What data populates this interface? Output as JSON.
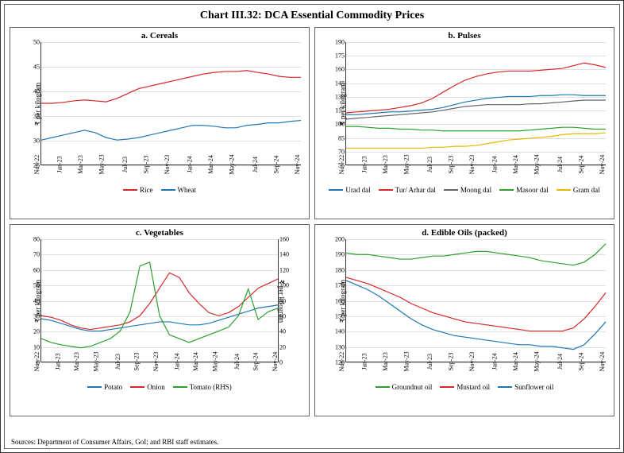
{
  "title": "Chart III.32: DCA Essential Commodity Prices",
  "sources": "Sources: Department of Consumer Affairs, GoI; and RBI staff estimates.",
  "ylabel": "₹ per kilogram",
  "xcategories": [
    "Nov-22",
    "Jan-23",
    "Mar-23",
    "May-23",
    "Jul-23",
    "Sep-23",
    "Nov-23",
    "Jan-24",
    "Mar-24",
    "May-24",
    "Jul-24",
    "Sep-24",
    "Nov-24"
  ],
  "colors": {
    "red": "#d62728",
    "blue": "#1f77b4",
    "green": "#2ca02c",
    "yellow": "#e6b800",
    "gray": "#666666",
    "grid": "#e0e0e0"
  },
  "panels": {
    "a": {
      "title": "a. Cereals",
      "ylim": [
        25,
        50
      ],
      "ytick_step": 5,
      "series": [
        {
          "name": "Rice",
          "color": "#d62728",
          "values": [
            37.5,
            37.5,
            37.7,
            38,
            38.2,
            38,
            37.8,
            38.5,
            39.5,
            40.5,
            41,
            41.5,
            42,
            42.5,
            43,
            43.5,
            43.8,
            44,
            44,
            44.2,
            43.8,
            43.5,
            43,
            42.8,
            42.8
          ]
        },
        {
          "name": "Wheat",
          "color": "#1f77b4",
          "values": [
            30,
            30.5,
            31,
            31.5,
            32,
            31.5,
            30.5,
            30,
            30.2,
            30.5,
            31,
            31.5,
            32,
            32.5,
            33,
            33,
            32.8,
            32.5,
            32.5,
            33,
            33.2,
            33.5,
            33.5,
            33.8,
            34
          ]
        }
      ]
    },
    "b": {
      "title": "b. Pulses",
      "ylim": [
        55,
        190
      ],
      "ytick_step": 15,
      "series": [
        {
          "name": "Urad dal",
          "color": "#1f77b4",
          "values": [
            110,
            110,
            111,
            112,
            113,
            113,
            114,
            115,
            116,
            118,
            121,
            124,
            126,
            128,
            129,
            130,
            130,
            130,
            131,
            131,
            132,
            132,
            131,
            131,
            131
          ]
        },
        {
          "name": "Tur/ Arhar dal",
          "color": "#d62728",
          "values": [
            112,
            113,
            114,
            115,
            116,
            118,
            120,
            123,
            128,
            135,
            142,
            148,
            152,
            155,
            157,
            158,
            158,
            158,
            159,
            160,
            161,
            164,
            167,
            165,
            162
          ]
        },
        {
          "name": "Moong dal",
          "color": "#666666",
          "values": [
            105,
            106,
            107,
            108,
            109,
            110,
            111,
            112,
            113,
            115,
            117,
            119,
            120,
            121,
            121,
            121,
            121,
            122,
            122,
            123,
            124,
            125,
            126,
            126,
            126
          ]
        },
        {
          "name": "Masoor dal",
          "color": "#2ca02c",
          "values": [
            97,
            97,
            96,
            95,
            95,
            94,
            94,
            93,
            93,
            92,
            92,
            92,
            92,
            92,
            92,
            92,
            92,
            93,
            94,
            95,
            96,
            96,
            95,
            94,
            94
          ]
        },
        {
          "name": "Gram dal",
          "color": "#e6b800",
          "values": [
            73,
            73,
            73,
            73,
            73,
            73,
            73,
            73,
            74,
            74,
            75,
            75,
            76,
            78,
            80,
            82,
            83,
            84,
            85,
            86,
            88,
            89,
            89,
            89,
            90
          ]
        }
      ]
    },
    "c": {
      "title": "c. Vegetables",
      "ylim": [
        0,
        80
      ],
      "ytick_step": 10,
      "ylim2": [
        0,
        160
      ],
      "ytick_step2": 20,
      "series": [
        {
          "name": "Potato",
          "color": "#1f77b4",
          "axis": "left",
          "values": [
            28,
            27,
            25,
            23,
            21,
            20,
            20,
            21,
            22,
            23,
            24,
            25,
            26,
            26,
            25,
            24,
            24,
            25,
            27,
            29,
            31,
            33,
            35,
            36,
            37
          ]
        },
        {
          "name": "Onion",
          "color": "#d62728",
          "axis": "left",
          "values": [
            30,
            29,
            27,
            24,
            22,
            21,
            22,
            23,
            24,
            26,
            30,
            38,
            48,
            58,
            55,
            45,
            38,
            32,
            30,
            32,
            36,
            42,
            48,
            51,
            54
          ]
        },
        {
          "name": "Tomato (RHS)",
          "color": "#2ca02c",
          "axis": "right",
          "values": [
            30,
            25,
            22,
            20,
            18,
            20,
            25,
            30,
            40,
            65,
            125,
            130,
            60,
            35,
            30,
            25,
            30,
            35,
            40,
            45,
            60,
            95,
            55,
            65,
            70
          ]
        }
      ]
    },
    "d": {
      "title": "d. Edible Oils (packed)",
      "ylim": [
        120,
        200
      ],
      "ytick_step": 10,
      "series": [
        {
          "name": "Groundnut oil",
          "color": "#2ca02c",
          "values": [
            191,
            190,
            190,
            189,
            188,
            187,
            187,
            188,
            189,
            189,
            190,
            191,
            192,
            192,
            191,
            190,
            189,
            188,
            186,
            185,
            184,
            183,
            185,
            190,
            197
          ]
        },
        {
          "name": "Mustard oil",
          "color": "#d62728",
          "values": [
            175,
            173,
            171,
            168,
            165,
            162,
            158,
            155,
            152,
            150,
            148,
            146,
            145,
            144,
            143,
            142,
            141,
            140,
            140,
            140,
            140,
            142,
            148,
            156,
            165
          ]
        },
        {
          "name": "Sunflower oil",
          "color": "#1f77b4",
          "values": [
            173,
            170,
            167,
            163,
            158,
            153,
            148,
            144,
            141,
            139,
            137,
            136,
            135,
            134,
            133,
            132,
            131,
            131,
            130,
            130,
            129,
            128,
            131,
            138,
            146
          ]
        }
      ]
    }
  }
}
